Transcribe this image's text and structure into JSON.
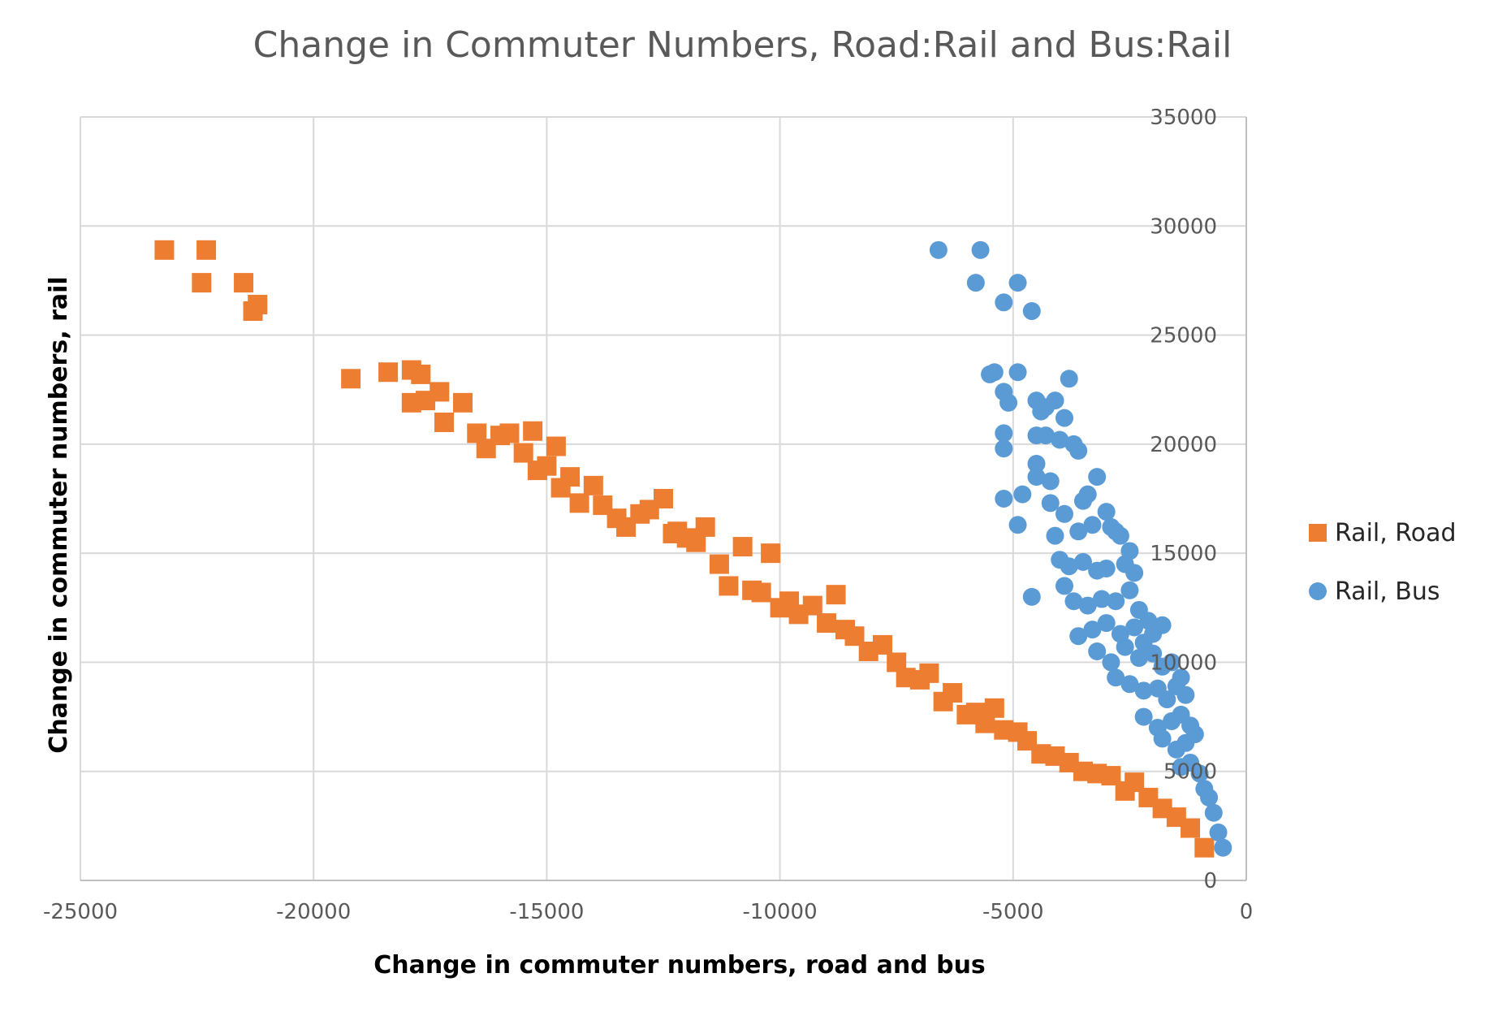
{
  "chart_data": {
    "type": "scatter",
    "title": "Change in Commuter Numbers, Road:Rail and Bus:Rail",
    "xlabel": "Change in commuter numbers, road and bus",
    "ylabel": "Change in commuter numbers, rail",
    "xlim": [
      -25000,
      0
    ],
    "ylim": [
      0,
      35000
    ],
    "x_ticks": [
      "-25000",
      "-20000",
      "-15000",
      "-10000",
      "-5000",
      "0"
    ],
    "y_ticks": [
      "0",
      "5000",
      "10000",
      "15000",
      "20000",
      "25000",
      "30000",
      "35000"
    ],
    "y_axis_position": "right",
    "grid": true,
    "legend_position": "right",
    "series": [
      {
        "name": "Rail, Road",
        "marker": "square",
        "color": "#ED7D31",
        "x": [
          -23200,
          -22300,
          -22400,
          -21500,
          -21300,
          -21200,
          -19200,
          -18400,
          -17900,
          -17600,
          -17900,
          -17700,
          -17300,
          -17200,
          -16800,
          -16500,
          -16300,
          -16000,
          -15800,
          -15500,
          -15300,
          -15200,
          -15000,
          -14800,
          -14700,
          -14500,
          -14300,
          -14000,
          -13800,
          -13500,
          -13300,
          -13000,
          -12800,
          -12500,
          -12300,
          -12200,
          -12000,
          -11800,
          -11600,
          -11300,
          -11100,
          -10800,
          -10600,
          -10400,
          -10200,
          -10000,
          -9800,
          -9600,
          -9300,
          -9000,
          -8800,
          -8600,
          -8400,
          -8100,
          -7800,
          -7500,
          -7300,
          -7000,
          -6800,
          -6500,
          -6300,
          -6000,
          -5800,
          -5600,
          -5400,
          -5200,
          -4900,
          -4700,
          -4400,
          -4100,
          -3800,
          -3500,
          -3200,
          -2900,
          -2600,
          -2400,
          -2100,
          -1800,
          -1500,
          -1200,
          -900
        ],
        "y": [
          28900,
          28900,
          27400,
          27400,
          26100,
          26400,
          23000,
          23300,
          23400,
          22000,
          21900,
          23200,
          22400,
          21000,
          21900,
          20500,
          19800,
          20400,
          20500,
          19600,
          20600,
          18800,
          19000,
          19900,
          18000,
          18500,
          17300,
          18100,
          17200,
          16600,
          16200,
          16800,
          17000,
          17500,
          15900,
          16000,
          15700,
          15500,
          16200,
          14500,
          13500,
          15300,
          13300,
          13200,
          15000,
          12500,
          12800,
          12200,
          12600,
          11800,
          13100,
          11500,
          11200,
          10500,
          10800,
          10000,
          9300,
          9200,
          9500,
          8200,
          8600,
          7600,
          7700,
          7200,
          7900,
          6900,
          6800,
          6400,
          5800,
          5700,
          5400,
          5000,
          4900,
          4800,
          4100,
          4500,
          3800,
          3300,
          2900,
          2400,
          1500
        ]
      },
      {
        "name": "Rail, Bus",
        "marker": "circle",
        "color": "#5B9BD5",
        "x": [
          -6600,
          -5700,
          -5800,
          -4900,
          -5200,
          -4600,
          -5500,
          -5400,
          -4900,
          -3800,
          -5200,
          -5100,
          -4500,
          -4300,
          -4400,
          -4100,
          -3900,
          -5200,
          -5200,
          -4500,
          -4300,
          -4000,
          -3700,
          -3600,
          -4500,
          -4500,
          -5200,
          -4200,
          -4800,
          -4200,
          -3900,
          -3500,
          -3400,
          -3200,
          -3000,
          -4900,
          -4100,
          -3600,
          -3300,
          -2900,
          -2800,
          -2700,
          -2500,
          -4000,
          -3800,
          -3500,
          -3200,
          -3000,
          -2600,
          -2400,
          -4600,
          -3900,
          -3700,
          -3400,
          -3100,
          -2800,
          -2500,
          -2300,
          -2100,
          -3600,
          -3300,
          -3000,
          -2700,
          -2400,
          -2200,
          -2000,
          -1800,
          -3200,
          -2900,
          -2600,
          -2300,
          -2000,
          -1800,
          -1600,
          -1400,
          -2800,
          -2500,
          -2200,
          -1900,
          -1700,
          -1500,
          -1300,
          -2200,
          -1900,
          -1600,
          -1400,
          -1200,
          -1800,
          -1500,
          -1300,
          -1100,
          -1400,
          -1200,
          -1000,
          -900,
          -800,
          -700,
          -600,
          -500
        ],
        "y": [
          28900,
          28900,
          27400,
          27400,
          26500,
          26100,
          23200,
          23300,
          23300,
          23000,
          22400,
          21900,
          22000,
          21700,
          21500,
          22000,
          21200,
          20500,
          19800,
          20400,
          20400,
          20200,
          20000,
          19700,
          19100,
          18500,
          17500,
          18300,
          17700,
          17300,
          16800,
          17400,
          17700,
          18500,
          16900,
          16300,
          15800,
          16000,
          16300,
          16200,
          16000,
          15800,
          15100,
          14700,
          14400,
          14600,
          14200,
          14300,
          14500,
          14100,
          13000,
          13500,
          12800,
          12600,
          12900,
          12800,
          13300,
          12400,
          11900,
          11200,
          11500,
          11800,
          11300,
          11600,
          10900,
          11300,
          11700,
          10500,
          10000,
          10700,
          10200,
          10400,
          9800,
          10000,
          9300,
          9300,
          9000,
          8700,
          8800,
          8300,
          8900,
          8500,
          7500,
          7000,
          7300,
          7600,
          7100,
          6500,
          6000,
          6300,
          6700,
          5200,
          5400,
          4900,
          4200,
          3800,
          3100,
          2200,
          1500
        ]
      }
    ]
  }
}
